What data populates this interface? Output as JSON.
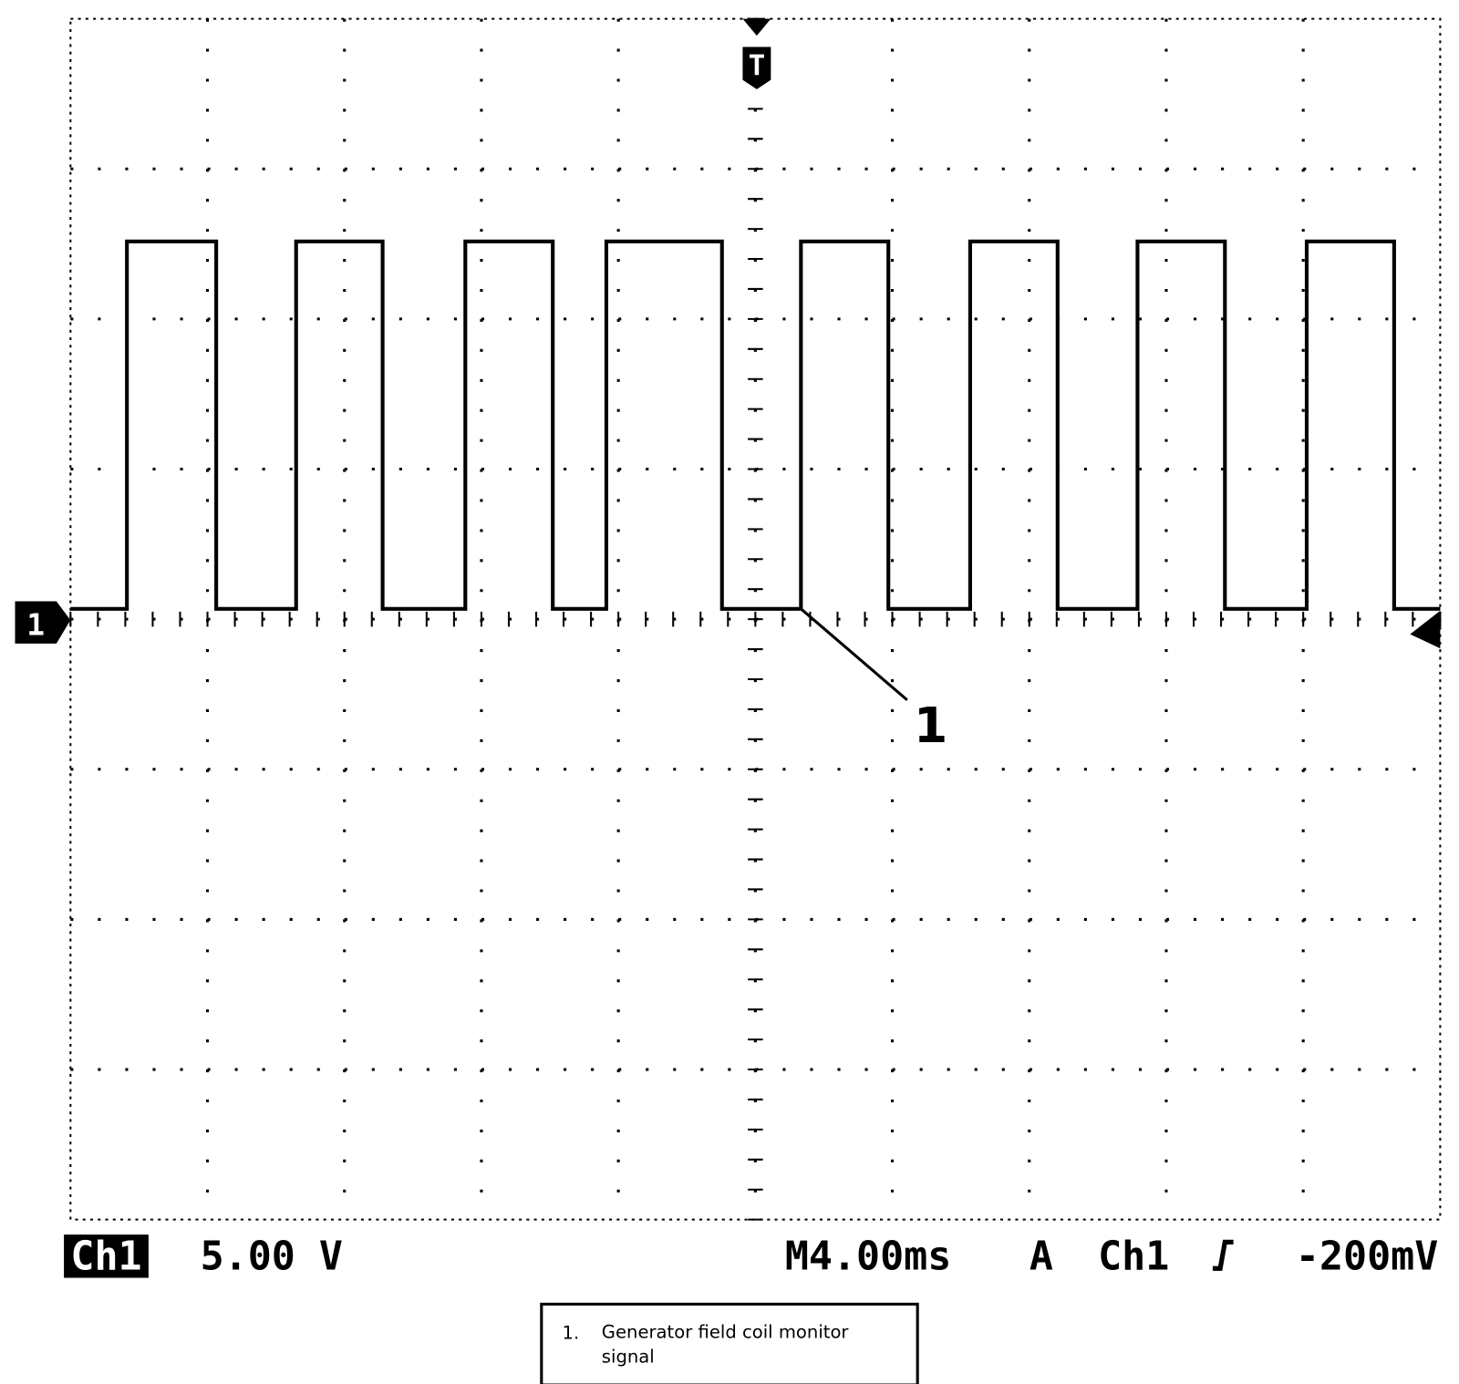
{
  "screen": {
    "trigger_marker": "T",
    "channel_marker": "1",
    "callout": "1"
  },
  "status_bar": {
    "channel": "Ch1",
    "volts_per_div": "5.00 V",
    "time_per_div": "M4.00ms",
    "trigger_mode": "A",
    "trigger_source": "Ch1",
    "trigger_level": "-200mV"
  },
  "legend": {
    "number": "1.",
    "text": "Generator field coil monitor signal"
  }
}
